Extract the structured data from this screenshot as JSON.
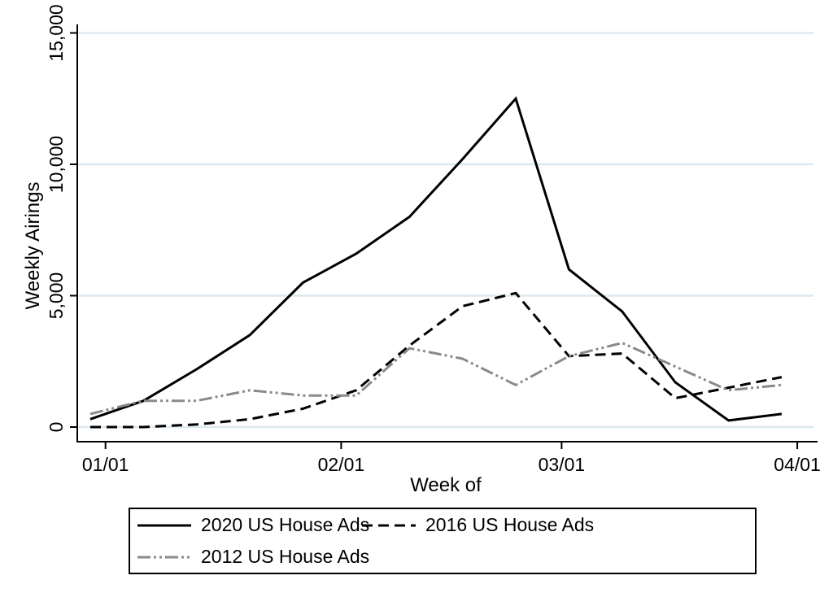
{
  "chart": {
    "y_axis": {
      "title": "Weekly Airings",
      "tick_labels": [
        "0",
        "5,000",
        "10,000",
        "15,000"
      ],
      "tick_values": [
        0,
        5000,
        10000,
        15000
      ]
    },
    "x_axis": {
      "title": "Week of",
      "tick_labels": [
        "01/01",
        "02/01",
        "03/01",
        "04/01"
      ]
    },
    "legend": [
      {
        "label": "2020 US House Ads",
        "color": "#000000",
        "style": "solid"
      },
      {
        "label": "2016 US House Ads",
        "color": "#000000",
        "style": "dashed"
      },
      {
        "label": "2012 US House Ads",
        "color": "#8a8a8a",
        "style": "dashdotdot"
      }
    ],
    "colors": {
      "axis": "#000000",
      "gridline": "#dde9ef",
      "series_2020": "#000000",
      "series_2016": "#000000",
      "series_2012": "#8a8a8a"
    }
  },
  "chart_data": {
    "type": "line",
    "title": "",
    "xlabel": "Week of",
    "ylabel": "Weekly Airings",
    "x": [
      "12/30",
      "01/06",
      "01/13",
      "01/20",
      "01/27",
      "02/03",
      "02/10",
      "02/17",
      "02/24",
      "03/02",
      "03/09",
      "03/16",
      "03/23",
      "03/30"
    ],
    "series": [
      {
        "name": "2020 US House Ads",
        "values": [
          300,
          1000,
          2200,
          3500,
          5500,
          6600,
          8000,
          10200,
          12500,
          6000,
          4400,
          1700,
          250,
          500
        ]
      },
      {
        "name": "2016 US House Ads",
        "values": [
          0,
          0,
          100,
          300,
          700,
          1400,
          3100,
          4600,
          5100,
          2700,
          2800,
          1100,
          1500,
          1900
        ]
      },
      {
        "name": "2012 US House Ads",
        "values": [
          500,
          1000,
          1000,
          1400,
          1200,
          1200,
          3000,
          2600,
          1600,
          2700,
          3200,
          2300,
          1400,
          1600
        ]
      }
    ],
    "ylim": [
      0,
      15300
    ],
    "grid": true,
    "legend_position": "bottom"
  }
}
